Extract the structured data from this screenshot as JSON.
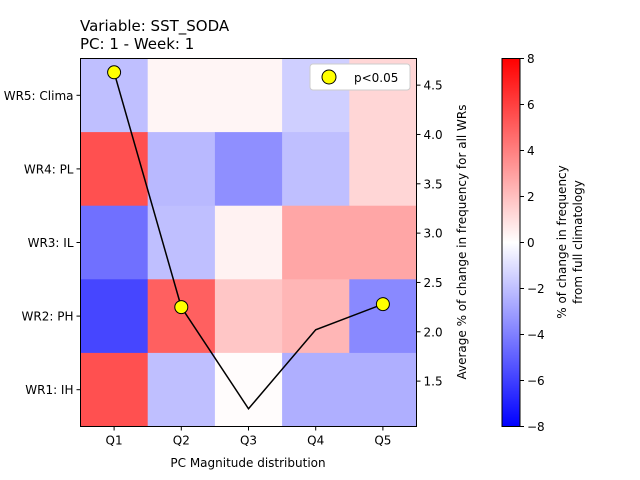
{
  "chart_data": {
    "type": "heatmap",
    "title_line1": "Variable: SST_SODA",
    "title_line2": "PC: 1 - Week: 1",
    "xlabel": "PC Magnitude distribution",
    "categories": [
      "Q1",
      "Q2",
      "Q3",
      "Q4",
      "Q5"
    ],
    "rows": [
      "WR5: Clima",
      "WR4: PL",
      "WR3: IL",
      "WR2: PH",
      "WR1: IH"
    ],
    "values": [
      [
        -2.0,
        0.3,
        0.3,
        -1.5,
        1.3
      ],
      [
        5.5,
        -2.2,
        -3.5,
        -2.0,
        1.3
      ],
      [
        -4.5,
        -2.0,
        0.4,
        2.8,
        2.8
      ],
      [
        -5.8,
        5.0,
        1.8,
        2.3,
        -3.7
      ],
      [
        5.5,
        -2.0,
        0.1,
        -2.5,
        -2.5
      ]
    ],
    "heatmap_color_range": [
      -8,
      8
    ],
    "colorbar": {
      "label_line1": "% of change in frequency",
      "label_line2": "from full climatology",
      "ticks": [
        -8,
        -6,
        -4,
        -2,
        0,
        2,
        4,
        6,
        8
      ]
    },
    "right_axis": {
      "label": "Average % of change in frequency for all WRs",
      "range": [
        1.04,
        4.77
      ],
      "ticks": [
        1.5,
        2.0,
        2.5,
        3.0,
        3.5,
        4.0,
        4.5
      ]
    },
    "line_series": {
      "values": [
        4.63,
        2.25,
        1.22,
        2.02,
        2.28
      ],
      "significant": [
        true,
        true,
        false,
        false,
        true
      ]
    },
    "legend": {
      "label": "p<0.05",
      "position": "top-right"
    }
  }
}
